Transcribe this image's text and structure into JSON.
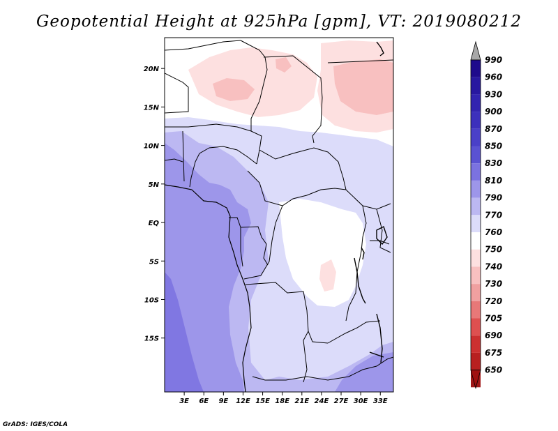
{
  "title": "Geopotential Height at 925hPa [gpm], VT: 2019080212",
  "credit": "GrADS: IGES/COLA",
  "map": {
    "lon_range": [
      0,
      35
    ],
    "lat_range": [
      -22,
      24
    ],
    "lat_ticks": [
      {
        "value": 20,
        "label": "20N"
      },
      {
        "value": 15,
        "label": "15N"
      },
      {
        "value": 10,
        "label": "10N"
      },
      {
        "value": 5,
        "label": "5N"
      },
      {
        "value": 0,
        "label": "EQ"
      },
      {
        "value": -5,
        "label": "5S"
      },
      {
        "value": -10,
        "label": "10S"
      },
      {
        "value": -15,
        "label": "15S"
      }
    ],
    "lon_ticks": [
      {
        "value": 3,
        "label": "3E"
      },
      {
        "value": 6,
        "label": "6E"
      },
      {
        "value": 9,
        "label": "9E"
      },
      {
        "value": 12,
        "label": "12E"
      },
      {
        "value": 15,
        "label": "15E"
      },
      {
        "value": 18,
        "label": "18E"
      },
      {
        "value": 21,
        "label": "21E"
      },
      {
        "value": 24,
        "label": "24E"
      },
      {
        "value": 27,
        "label": "27E"
      },
      {
        "value": 30,
        "label": "30E"
      },
      {
        "value": 33,
        "label": "33E"
      }
    ]
  },
  "colorbar": {
    "levels": [
      {
        "label": "990",
        "color": "#1e0a8c"
      },
      {
        "label": "960",
        "color": "#2818a0"
      },
      {
        "label": "930",
        "color": "#3224b0"
      },
      {
        "label": "900",
        "color": "#3c30bc"
      },
      {
        "label": "870",
        "color": "#4a40c8"
      },
      {
        "label": "850",
        "color": "#5a52d2"
      },
      {
        "label": "830",
        "color": "#7b72e0"
      },
      {
        "label": "810",
        "color": "#9d96ea"
      },
      {
        "label": "790",
        "color": "#bcb8f2"
      },
      {
        "label": "770",
        "color": "#dcdcfa"
      },
      {
        "label": "760",
        "color": "#ffffff"
      },
      {
        "label": "750",
        "color": "#fde0e0"
      },
      {
        "label": "740",
        "color": "#f8c0c0"
      },
      {
        "label": "730",
        "color": "#f0a0a0"
      },
      {
        "label": "720",
        "color": "#e87878"
      },
      {
        "label": "705",
        "color": "#de5050"
      },
      {
        "label": "690",
        "color": "#cc3030"
      },
      {
        "label": "675",
        "color": "#b82020"
      },
      {
        "label": "650",
        "color": "#a01818"
      }
    ],
    "top_arrow_color": "#a8a8a8",
    "bottom_arrow_color": "#a01010"
  }
}
